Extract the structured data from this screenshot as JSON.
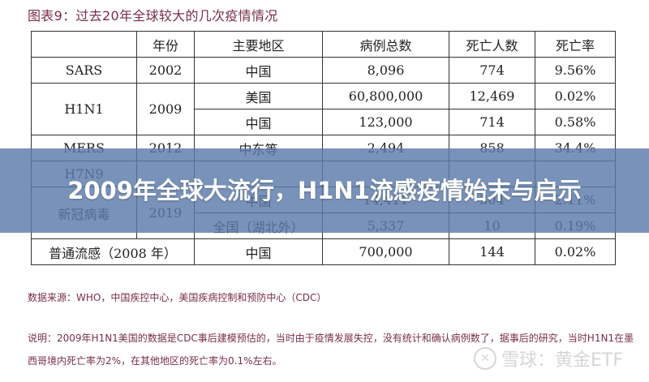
{
  "figure": {
    "title": "图表9：过去20年全球较大的几次疫情情况"
  },
  "table": {
    "headers": [
      "",
      "年份",
      "主要地区",
      "病例总数",
      "死亡人数",
      "死亡率"
    ],
    "rows": [
      {
        "disease": "SARS",
        "year": "2002",
        "region": "中国",
        "cases": "8,096",
        "deaths": "774",
        "rate": "9.56%"
      },
      {
        "disease": "H1N1",
        "year": "2009",
        "region": "美国",
        "cases": "60,800,000",
        "deaths": "12,469",
        "rate": "0.02%"
      },
      {
        "disease": "",
        "year": "",
        "region": "中国",
        "cases": "123,000",
        "deaths": "714",
        "rate": "0.58%"
      },
      {
        "disease": "MERS",
        "year": "2012",
        "region": "中东等",
        "cases": "2,494",
        "deaths": "858",
        "rate": "34.4%"
      },
      {
        "disease": "H7N9",
        "year": "",
        "region": "",
        "cases": "",
        "deaths": "",
        "rate": ""
      },
      {
        "disease": "新冠病毒",
        "year": "2019",
        "region": "中国",
        "cases": "14,411",
        "deaths": "304",
        "rate": "2.11%"
      },
      {
        "disease": "",
        "year": "",
        "region": "全国（湖北外）",
        "cases": "5,337",
        "deaths": "10",
        "rate": "0.19%"
      },
      {
        "disease": "普通流感（2008 年）",
        "year": "",
        "region": "中国",
        "cases": "700,000",
        "deaths": "144",
        "rate": "0.02%"
      }
    ]
  },
  "source": "数据来源：WHO，中国疾控中心，美国疾病控制和预防中心（CDC）",
  "note": "说明：2009年H1N1美国的数据是CDC事后建模预估的，当时由于疫情发展失控，没有统计和确认病例数了，据事后的研究，当时H1N1在墨西哥境内死亡率为2%，在其他地区的死亡率为0.1%左右。",
  "watermark": {
    "icon": "snowball-logo-icon",
    "logo_glyph": "✕",
    "text": "雪球：黄金ETF"
  },
  "banner": {
    "headline": "2009年全球大流行，H1N1流感疫情始末与启示",
    "background": "#5c7aaa"
  }
}
